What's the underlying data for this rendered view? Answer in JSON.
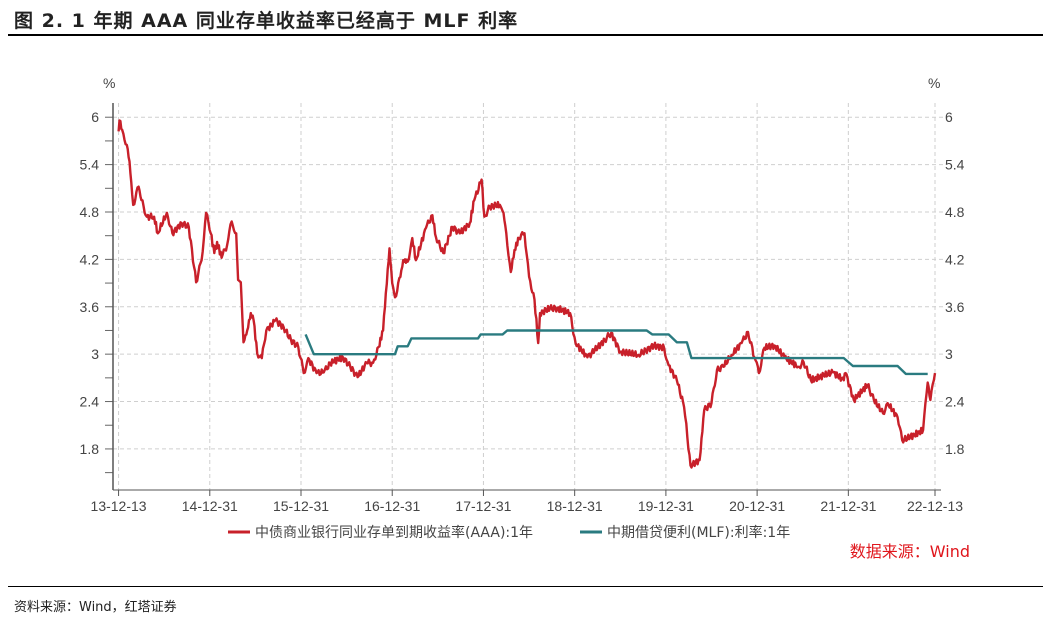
{
  "title": "图 2. 1 年期 AAA 同业存单收益率已经高于 MLF 利率",
  "source_note": "资料来源：Wind，红塔证券",
  "chart_data": {
    "type": "line",
    "title": "图 2. 1 年期 AAA 同业存单收益率已经高于 MLF 利率",
    "xlabel": "",
    "ylabel_left": "%",
    "ylabel_right": "%",
    "ylim": [
      1.28,
      6.18
    ],
    "xlim": [
      2013.95,
      2022.95
    ],
    "y_ticks": [
      "6",
      "5.4",
      "4.8",
      "4.2",
      "3.6",
      "3",
      "2.4",
      "1.8"
    ],
    "y_tick_values": [
      6,
      5.4,
      4.8,
      4.2,
      3.6,
      3,
      2.4,
      1.8
    ],
    "x_ticks": [
      "13-12-13",
      "14-12-31",
      "15-12-31",
      "16-12-31",
      "17-12-31",
      "18-12-31",
      "19-12-31",
      "20-12-31",
      "21-12-31",
      "22-12-13"
    ],
    "x_tick_values": [
      2014.0,
      2015.0,
      2016.0,
      2017.0,
      2018.0,
      2019.0,
      2020.0,
      2021.0,
      2022.0,
      2022.95
    ],
    "grid": true,
    "legend_position": "bottom",
    "annotation": "数据来源：Wind",
    "series": [
      {
        "name": "中债商业银行同业存单到期收益率(AAA):1年",
        "color": "#c8202a",
        "points": [
          [
            2014.0,
            5.82
          ],
          [
            2014.01,
            5.96
          ],
          [
            2014.04,
            5.84
          ],
          [
            2014.09,
            5.65
          ],
          [
            2014.12,
            5.44
          ],
          [
            2014.16,
            4.89
          ],
          [
            2014.22,
            5.12
          ],
          [
            2014.25,
            4.95
          ],
          [
            2014.31,
            4.74
          ],
          [
            2014.39,
            4.74
          ],
          [
            2014.43,
            4.53
          ],
          [
            2014.53,
            4.79
          ],
          [
            2014.59,
            4.53
          ],
          [
            2014.69,
            4.66
          ],
          [
            2014.77,
            4.61
          ],
          [
            2014.85,
            3.91
          ],
          [
            2014.91,
            4.19
          ],
          [
            2014.96,
            4.79
          ],
          [
            2015.01,
            4.53
          ],
          [
            2015.05,
            4.28
          ],
          [
            2015.08,
            4.42
          ],
          [
            2015.13,
            4.22
          ],
          [
            2015.19,
            4.38
          ],
          [
            2015.24,
            4.68
          ],
          [
            2015.29,
            4.53
          ],
          [
            2015.31,
            3.94
          ],
          [
            2015.34,
            3.91
          ],
          [
            2015.37,
            3.15
          ],
          [
            2015.41,
            3.3
          ],
          [
            2015.45,
            3.52
          ],
          [
            2015.48,
            3.43
          ],
          [
            2015.52,
            3.01
          ],
          [
            2015.57,
            2.95
          ],
          [
            2015.62,
            3.3
          ],
          [
            2015.72,
            3.43
          ],
          [
            2015.81,
            3.34
          ],
          [
            2015.89,
            3.18
          ],
          [
            2015.97,
            3.09
          ],
          [
            2016.03,
            2.76
          ],
          [
            2016.08,
            2.95
          ],
          [
            2016.17,
            2.76
          ],
          [
            2016.25,
            2.77
          ],
          [
            2016.32,
            2.89
          ],
          [
            2016.46,
            2.96
          ],
          [
            2016.54,
            2.84
          ],
          [
            2016.62,
            2.71
          ],
          [
            2016.72,
            2.89
          ],
          [
            2016.79,
            2.89
          ],
          [
            2016.85,
            3.09
          ],
          [
            2016.9,
            3.3
          ],
          [
            2016.93,
            3.77
          ],
          [
            2016.97,
            4.34
          ],
          [
            2017.0,
            3.9
          ],
          [
            2017.03,
            3.72
          ],
          [
            2017.09,
            3.98
          ],
          [
            2017.12,
            4.19
          ],
          [
            2017.17,
            4.17
          ],
          [
            2017.22,
            4.47
          ],
          [
            2017.26,
            4.19
          ],
          [
            2017.37,
            4.6
          ],
          [
            2017.44,
            4.76
          ],
          [
            2017.48,
            4.48
          ],
          [
            2017.56,
            4.28
          ],
          [
            2017.66,
            4.61
          ],
          [
            2017.74,
            4.53
          ],
          [
            2017.85,
            4.66
          ],
          [
            2017.9,
            4.95
          ],
          [
            2017.98,
            5.21
          ],
          [
            2018.01,
            4.74
          ],
          [
            2018.07,
            4.87
          ],
          [
            2018.18,
            4.89
          ],
          [
            2018.22,
            4.79
          ],
          [
            2018.25,
            4.53
          ],
          [
            2018.3,
            4.04
          ],
          [
            2018.34,
            4.32
          ],
          [
            2018.39,
            4.47
          ],
          [
            2018.45,
            4.53
          ],
          [
            2018.5,
            3.98
          ],
          [
            2018.56,
            3.69
          ],
          [
            2018.6,
            3.14
          ],
          [
            2018.62,
            3.52
          ],
          [
            2018.73,
            3.58
          ],
          [
            2018.81,
            3.58
          ],
          [
            2018.95,
            3.52
          ],
          [
            2019.01,
            3.14
          ],
          [
            2019.14,
            2.96
          ],
          [
            2019.22,
            3.05
          ],
          [
            2019.33,
            3.18
          ],
          [
            2019.4,
            3.27
          ],
          [
            2019.5,
            3.03
          ],
          [
            2019.7,
            2.99
          ],
          [
            2019.87,
            3.11
          ],
          [
            2019.98,
            3.08
          ],
          [
            2020.03,
            2.86
          ],
          [
            2020.12,
            2.67
          ],
          [
            2020.2,
            2.33
          ],
          [
            2020.27,
            1.59
          ],
          [
            2020.37,
            1.66
          ],
          [
            2020.42,
            2.29
          ],
          [
            2020.5,
            2.38
          ],
          [
            2020.56,
            2.8
          ],
          [
            2020.63,
            2.84
          ],
          [
            2020.72,
            2.99
          ],
          [
            2020.83,
            3.14
          ],
          [
            2020.9,
            3.28
          ],
          [
            2020.97,
            2.96
          ],
          [
            2021.02,
            2.76
          ],
          [
            2021.08,
            3.08
          ],
          [
            2021.19,
            3.11
          ],
          [
            2021.3,
            2.96
          ],
          [
            2021.45,
            2.84
          ],
          [
            2021.51,
            2.9
          ],
          [
            2021.59,
            2.67
          ],
          [
            2021.73,
            2.73
          ],
          [
            2021.83,
            2.77
          ],
          [
            2021.95,
            2.67
          ],
          [
            2021.97,
            2.76
          ],
          [
            2022.06,
            2.42
          ],
          [
            2022.21,
            2.61
          ],
          [
            2022.28,
            2.42
          ],
          [
            2022.38,
            2.25
          ],
          [
            2022.43,
            2.38
          ],
          [
            2022.54,
            2.2
          ],
          [
            2022.59,
            1.91
          ],
          [
            2022.68,
            1.95
          ],
          [
            2022.82,
            2.04
          ],
          [
            2022.87,
            2.64
          ],
          [
            2022.9,
            2.42
          ],
          [
            2022.95,
            2.76
          ]
        ]
      },
      {
        "name": "中期借贷便利(MLF):利率:1年",
        "color": "#2a7b80",
        "points": [
          [
            2016.05,
            3.25
          ],
          [
            2016.14,
            3.0
          ],
          [
            2017.03,
            3.0
          ],
          [
            2017.06,
            3.1
          ],
          [
            2017.17,
            3.1
          ],
          [
            2017.21,
            3.2
          ],
          [
            2017.94,
            3.2
          ],
          [
            2017.97,
            3.25
          ],
          [
            2018.21,
            3.25
          ],
          [
            2018.26,
            3.3
          ],
          [
            2019.79,
            3.3
          ],
          [
            2019.85,
            3.25
          ],
          [
            2020.03,
            3.25
          ],
          [
            2020.12,
            3.15
          ],
          [
            2020.23,
            3.15
          ],
          [
            2020.28,
            2.95
          ],
          [
            2021.95,
            2.95
          ],
          [
            2022.05,
            2.85
          ],
          [
            2022.54,
            2.85
          ],
          [
            2022.63,
            2.75
          ],
          [
            2022.87,
            2.75
          ]
        ]
      }
    ]
  }
}
